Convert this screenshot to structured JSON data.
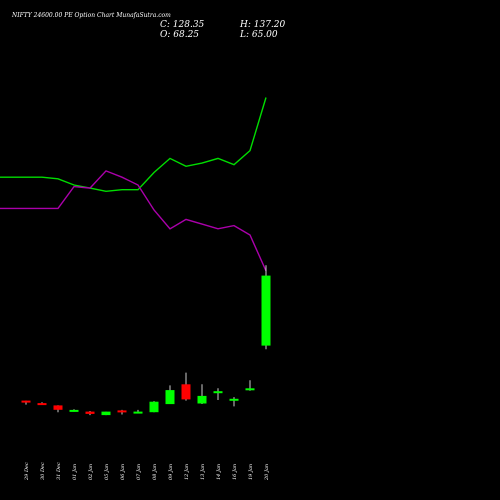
{
  "header": {
    "title": "NIFTY 24600.00 PE Option  Chart MunafaSutra.com",
    "close": "C: 128.35",
    "open": "O: 68.25",
    "high": "H: 137.20",
    "low": "L: 65.00"
  },
  "colors": {
    "background": "#000000",
    "up": "#00ff00",
    "down": "#ff0000",
    "wick": "#ffffff",
    "line_green": "#00dd00",
    "line_purple": "#aa00aa"
  },
  "chart_data": {
    "type": "candlestick",
    "categories": [
      "29 Dec",
      "30 Dec",
      "31 Dec",
      "01 Jan",
      "02 Jan",
      "05 Jan",
      "06 Jan",
      "07 Jan",
      "08 Jan",
      "09 Jan",
      "12 Jan",
      "13 Jan",
      "14 Jan",
      "16 Jan",
      "19 Jan",
      "20 Jan"
    ],
    "ohlc": [
      {
        "open": 21.0,
        "high": 21.0,
        "low": 17.5,
        "close": 19.5
      },
      {
        "open": 18.8,
        "high": 19.5,
        "low": 18.0,
        "close": 18.5
      },
      {
        "open": 16.8,
        "high": 17.0,
        "low": 11.0,
        "close": 13.0
      },
      {
        "open": 12.0,
        "high": 13.5,
        "low": 11.5,
        "close": 13.0
      },
      {
        "open": 11.5,
        "high": 12.0,
        "low": 8.5,
        "close": 9.5
      },
      {
        "open": 8.5,
        "high": 11.5,
        "low": 8.5,
        "close": 11.5
      },
      {
        "open": 12.5,
        "high": 13.0,
        "low": 9.0,
        "close": 11.5
      },
      {
        "open": 11.0,
        "high": 13.0,
        "low": 10.5,
        "close": 11.5
      },
      {
        "open": 11.0,
        "high": 20.5,
        "low": 11.0,
        "close": 20.0
      },
      {
        "open": 18.0,
        "high": 34.0,
        "low": 18.0,
        "close": 30.0
      },
      {
        "open": 35.0,
        "high": 45.0,
        "low": 21.0,
        "close": 22.0
      },
      {
        "open": 18.5,
        "high": 35.0,
        "low": 18.0,
        "close": 25.0
      },
      {
        "open": 28.5,
        "high": 31.5,
        "low": 21.5,
        "close": 29.0
      },
      {
        "open": 22.0,
        "high": 24.0,
        "low": 16.0,
        "close": 22.5
      },
      {
        "open": 31.0,
        "high": 38.5,
        "low": 29.5,
        "close": 31.5
      },
      {
        "open": 68.25,
        "high": 137.2,
        "low": 65.0,
        "close": 128.35
      }
    ],
    "series": [
      {
        "color": "green",
        "values": [
          42.5,
          42.5,
          42.0,
          40.0,
          39.0,
          38.0,
          38.5,
          38.5,
          44.0,
          48.5,
          46.0,
          47.0,
          48.5,
          46.5,
          51.0,
          68.0
        ]
      },
      {
        "color": "purple",
        "values": [
          32.5,
          32.5,
          32.5,
          39.5,
          39.0,
          44.5,
          42.5,
          40.0,
          32.0,
          26.0,
          29.0,
          27.5,
          26.0,
          27.0,
          24.0,
          12.5
        ]
      }
    ]
  }
}
